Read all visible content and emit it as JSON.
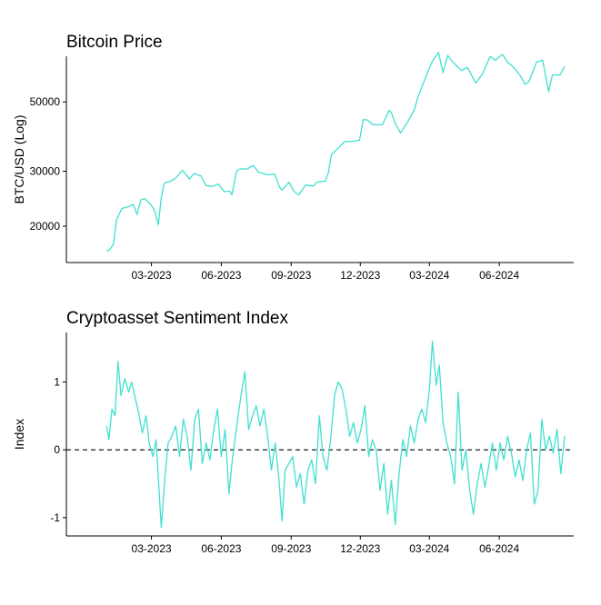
{
  "chart_data": [
    {
      "type": "line",
      "title": "Bitcoin Price",
      "xlabel": "",
      "ylabel": "BTC/USD (Log)",
      "y_scale": "log",
      "line_color": "#40E0D0",
      "grid": false,
      "x_ticks": [
        "03-2023",
        "06-2023",
        "09-2023",
        "12-2023",
        "03-2024",
        "06-2024"
      ],
      "y_ticks": [
        20000,
        30000,
        50000
      ],
      "xlim": [
        "2022-11-09",
        "2024-09-07"
      ],
      "ylim": [
        15300,
        70000
      ],
      "series": [
        {
          "x": [
            "2023-01-01",
            "2023-01-05",
            "2023-01-10",
            "2023-01-14",
            "2023-01-21",
            "2023-01-30",
            "2023-02-05",
            "2023-02-10",
            "2023-02-15",
            "2023-02-20",
            "2023-02-28",
            "2023-03-05",
            "2023-03-10",
            "2023-03-14",
            "2023-03-18",
            "2023-03-25",
            "2023-04-01",
            "2023-04-11",
            "2023-04-20",
            "2023-04-26",
            "2023-05-05",
            "2023-05-12",
            "2023-05-20",
            "2023-05-28",
            "2023-06-05",
            "2023-06-12",
            "2023-06-15",
            "2023-06-21",
            "2023-06-25",
            "2023-07-05",
            "2023-07-13",
            "2023-07-20",
            "2023-08-01",
            "2023-08-10",
            "2023-08-17",
            "2023-08-20",
            "2023-08-29",
            "2023-09-05",
            "2023-09-11",
            "2023-09-20",
            "2023-09-30",
            "2023-10-05",
            "2023-10-16",
            "2023-10-20",
            "2023-10-24",
            "2023-11-01",
            "2023-11-10",
            "2023-11-20",
            "2023-11-30",
            "2023-12-05",
            "2023-12-10",
            "2023-12-18",
            "2023-12-30",
            "2024-01-08",
            "2024-01-11",
            "2024-01-16",
            "2024-01-23",
            "2024-02-01",
            "2024-02-10",
            "2024-02-15",
            "2024-02-28",
            "2024-03-05",
            "2024-03-13",
            "2024-03-19",
            "2024-03-25",
            "2024-04-01",
            "2024-04-12",
            "2024-04-20",
            "2024-05-01",
            "2024-05-10",
            "2024-05-20",
            "2024-05-27",
            "2024-06-05",
            "2024-06-12",
            "2024-06-20",
            "2024-06-28",
            "2024-07-05",
            "2024-07-10",
            "2024-07-20",
            "2024-07-28",
            "2024-08-05",
            "2024-08-10",
            "2024-08-20",
            "2024-08-26"
          ],
          "values": [
            16600,
            16800,
            17500,
            20900,
            22800,
            23100,
            23500,
            21800,
            24300,
            24500,
            23500,
            22500,
            20200,
            24700,
            27500,
            27800,
            28400,
            30200,
            28300,
            29500,
            29000,
            27000,
            26800,
            27300,
            25800,
            25900,
            25200,
            30000,
            30500,
            30500,
            31300,
            29800,
            29200,
            29400,
            26600,
            26100,
            27700,
            25800,
            25200,
            27100,
            26900,
            27700,
            27900,
            29700,
            33900,
            35400,
            37300,
            37400,
            37700,
            43900,
            43800,
            42300,
            42200,
            47000,
            46200,
            42700,
            39800,
            43000,
            47200,
            52000,
            62500,
            67500,
            72000,
            62000,
            70500,
            67000,
            63000,
            64500,
            57500,
            61500,
            70000,
            68000,
            71000,
            67000,
            64500,
            61000,
            57000,
            58000,
            67000,
            68000,
            54000,
            61000,
            61000,
            65000
          ]
        }
      ]
    },
    {
      "type": "line",
      "title": "Cryptoasset Sentiment Index",
      "xlabel": "",
      "ylabel": "Index",
      "line_color": "#40E0D0",
      "grid": false,
      "zero_line": "dashed",
      "x_ticks": [
        "03-2023",
        "06-2023",
        "09-2023",
        "12-2023",
        "03-2024",
        "06-2024"
      ],
      "y_ticks": [
        -1,
        0,
        1
      ],
      "xlim": [
        "2022-11-09",
        "2024-09-07"
      ],
      "ylim": [
        -1.27,
        1.73
      ],
      "series": [
        {
          "x": [
            "2023-01-01",
            "2023-01-04",
            "2023-01-08",
            "2023-01-12",
            "2023-01-16",
            "2023-01-20",
            "2023-01-25",
            "2023-01-30",
            "2023-02-03",
            "2023-02-08",
            "2023-02-12",
            "2023-02-17",
            "2023-02-22",
            "2023-02-26",
            "2023-03-03",
            "2023-03-07",
            "2023-03-10",
            "2023-03-14",
            "2023-03-18",
            "2023-03-23",
            "2023-03-28",
            "2023-04-02",
            "2023-04-07",
            "2023-04-12",
            "2023-04-17",
            "2023-04-22",
            "2023-04-27",
            "2023-05-02",
            "2023-05-07",
            "2023-05-12",
            "2023-05-17",
            "2023-05-22",
            "2023-05-27",
            "2023-06-01",
            "2023-06-06",
            "2023-06-11",
            "2023-06-15",
            "2023-06-19",
            "2023-06-23",
            "2023-06-27",
            "2023-07-02",
            "2023-07-07",
            "2023-07-12",
            "2023-07-17",
            "2023-07-22",
            "2023-07-27",
            "2023-08-01",
            "2023-08-06",
            "2023-08-11",
            "2023-08-16",
            "2023-08-20",
            "2023-08-24",
            "2023-08-29",
            "2023-09-03",
            "2023-09-08",
            "2023-09-13",
            "2023-09-18",
            "2023-09-23",
            "2023-09-28",
            "2023-10-03",
            "2023-10-08",
            "2023-10-13",
            "2023-10-18",
            "2023-10-23",
            "2023-10-28",
            "2023-11-02",
            "2023-11-07",
            "2023-11-12",
            "2023-11-17",
            "2023-11-22",
            "2023-11-27",
            "2023-12-02",
            "2023-12-07",
            "2023-12-12",
            "2023-12-17",
            "2023-12-22",
            "2023-12-27",
            "2024-01-01",
            "2024-01-06",
            "2024-01-11",
            "2024-01-16",
            "2024-01-21",
            "2024-01-26",
            "2024-01-31",
            "2024-02-05",
            "2024-02-10",
            "2024-02-15",
            "2024-02-20",
            "2024-02-25",
            "2024-03-01",
            "2024-03-05",
            "2024-03-10",
            "2024-03-14",
            "2024-03-19",
            "2024-03-24",
            "2024-03-29",
            "2024-04-03",
            "2024-04-08",
            "2024-04-13",
            "2024-04-18",
            "2024-04-23",
            "2024-04-28",
            "2024-05-03",
            "2024-05-08",
            "2024-05-13",
            "2024-05-18",
            "2024-05-23",
            "2024-05-28",
            "2024-06-02",
            "2024-06-07",
            "2024-06-12",
            "2024-06-17",
            "2024-06-22",
            "2024-06-27",
            "2024-07-02",
            "2024-07-07",
            "2024-07-12",
            "2024-07-17",
            "2024-07-22",
            "2024-07-27",
            "2024-08-01",
            "2024-08-06",
            "2024-08-11",
            "2024-08-16",
            "2024-08-21",
            "2024-08-26"
          ],
          "values": [
            0.35,
            0.15,
            0.6,
            0.5,
            1.3,
            0.8,
            1.05,
            0.85,
            1.0,
            0.75,
            0.55,
            0.25,
            0.5,
            0.1,
            -0.1,
            0.15,
            -0.4,
            -1.15,
            -0.5,
            0.1,
            0.2,
            0.35,
            -0.1,
            0.45,
            0.2,
            -0.3,
            0.45,
            0.6,
            -0.2,
            0.1,
            -0.15,
            0.3,
            0.6,
            -0.1,
            0.3,
            -0.65,
            -0.2,
            0.15,
            0.5,
            0.8,
            1.15,
            0.3,
            0.5,
            0.65,
            0.35,
            0.6,
            0.2,
            -0.3,
            0.1,
            -0.45,
            -1.05,
            -0.3,
            -0.2,
            -0.1,
            -0.55,
            -0.35,
            -0.8,
            -0.3,
            -0.15,
            -0.5,
            0.5,
            -0.1,
            -0.3,
            0.15,
            0.8,
            1.0,
            0.9,
            0.6,
            0.2,
            0.4,
            0.1,
            0.3,
            0.65,
            -0.1,
            0.15,
            0.0,
            -0.6,
            -0.2,
            -0.95,
            -0.45,
            -1.1,
            -0.35,
            0.15,
            -0.1,
            0.35,
            0.1,
            0.45,
            0.6,
            0.4,
            0.9,
            1.6,
            0.95,
            1.25,
            0.4,
            0.1,
            -0.1,
            -0.5,
            0.85,
            -0.3,
            0.0,
            -0.6,
            -0.95,
            -0.5,
            -0.2,
            -0.55,
            -0.25,
            0.1,
            -0.3,
            0.1,
            -0.15,
            0.2,
            -0.05,
            -0.4,
            -0.15,
            -0.45,
            0.0,
            0.25,
            -0.8,
            -0.6,
            0.45,
            0.0,
            0.2,
            -0.05,
            0.3,
            -0.35,
            0.2
          ]
        }
      ]
    }
  ]
}
